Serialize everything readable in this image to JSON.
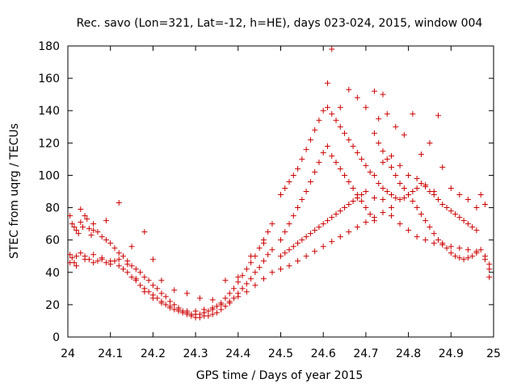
{
  "chart_data": {
    "type": "scatter",
    "title": "Rec. savo (Lon=321, Lat=-12, h=HE), days 023-024, 2015, window 004",
    "xlabel": "GPS time / Days of year 2015",
    "ylabel": "STEC from uqrg / TECUs",
    "xlim": [
      24,
      25
    ],
    "ylim": [
      0,
      180
    ],
    "xticks": [
      24,
      24.1,
      24.2,
      24.3,
      24.4,
      24.5,
      24.6,
      24.7,
      24.8,
      24.9,
      25
    ],
    "xtick_labels": [
      "24",
      "24.1",
      "24.2",
      "24.3",
      "24.4",
      "24.5",
      "24.6",
      "24.7",
      "24.8",
      "24.9",
      "25"
    ],
    "yticks": [
      0,
      20,
      40,
      60,
      80,
      100,
      120,
      140,
      160,
      180
    ],
    "ytick_labels": [
      "0",
      "20",
      "40",
      "60",
      "80",
      "100",
      "120",
      "140",
      "160",
      "180"
    ],
    "grid": false,
    "marker": "plus",
    "color": "#cc0000",
    "points": [
      [
        24.005,
        75
      ],
      [
        24.01,
        70
      ],
      [
        24.015,
        68
      ],
      [
        24.02,
        66
      ],
      [
        24.025,
        64
      ],
      [
        24.03,
        71
      ],
      [
        24.035,
        68
      ],
      [
        24.04,
        75
      ],
      [
        24.045,
        73
      ],
      [
        24.05,
        67
      ],
      [
        24.055,
        63
      ],
      [
        24.06,
        66
      ],
      [
        24.07,
        65
      ],
      [
        24.08,
        62
      ],
      [
        24.09,
        60
      ],
      [
        24.1,
        58
      ],
      [
        24.11,
        55
      ],
      [
        24.12,
        52
      ],
      [
        24.13,
        50
      ],
      [
        24.14,
        47
      ],
      [
        24.15,
        44
      ],
      [
        24.16,
        42
      ],
      [
        24.17,
        40
      ],
      [
        24.18,
        37
      ],
      [
        24.19,
        35
      ],
      [
        24.2,
        32
      ],
      [
        24.21,
        30
      ],
      [
        24.22,
        27
      ],
      [
        24.23,
        25
      ],
      [
        24.24,
        22
      ],
      [
        24.25,
        20
      ],
      [
        24.26,
        18
      ],
      [
        24.27,
        16
      ],
      [
        24.28,
        15
      ],
      [
        24.29,
        14
      ],
      [
        24.3,
        14
      ],
      [
        24.31,
        14
      ],
      [
        24.32,
        15
      ],
      [
        24.33,
        16
      ],
      [
        24.34,
        17
      ],
      [
        24.35,
        19
      ],
      [
        24.36,
        21
      ],
      [
        24.37,
        24
      ],
      [
        24.38,
        27
      ],
      [
        24.39,
        30
      ],
      [
        24.4,
        34
      ],
      [
        24.41,
        38
      ],
      [
        24.42,
        42
      ],
      [
        24.43,
        46
      ],
      [
        24.44,
        50
      ],
      [
        24.45,
        55
      ],
      [
        24.46,
        60
      ],
      [
        24.47,
        65
      ],
      [
        24.48,
        70
      ],
      [
        24.005,
        51
      ],
      [
        24.01,
        49
      ],
      [
        24.015,
        46
      ],
      [
        24.02,
        44
      ],
      [
        24.03,
        52
      ],
      [
        24.04,
        50
      ],
      [
        24.05,
        48
      ],
      [
        24.06,
        51
      ],
      [
        24.07,
        47
      ],
      [
        24.08,
        49
      ],
      [
        24.09,
        46
      ],
      [
        24.1,
        45
      ],
      [
        24.11,
        47
      ],
      [
        24.12,
        44
      ],
      [
        24.13,
        42
      ],
      [
        24.14,
        40
      ],
      [
        24.15,
        37
      ],
      [
        24.16,
        35
      ],
      [
        24.17,
        32
      ],
      [
        24.18,
        30
      ],
      [
        24.19,
        28
      ],
      [
        24.2,
        26
      ],
      [
        24.21,
        24
      ],
      [
        24.22,
        22
      ],
      [
        24.23,
        20
      ],
      [
        24.24,
        19
      ],
      [
        24.25,
        17
      ],
      [
        24.26,
        16
      ],
      [
        24.27,
        15
      ],
      [
        24.28,
        14
      ],
      [
        24.29,
        13
      ],
      [
        24.3,
        12
      ],
      [
        24.31,
        12
      ],
      [
        24.32,
        13
      ],
      [
        24.33,
        13
      ],
      [
        24.34,
        14
      ],
      [
        24.35,
        15
      ],
      [
        24.36,
        17
      ],
      [
        24.37,
        19
      ],
      [
        24.38,
        21
      ],
      [
        24.39,
        24
      ],
      [
        24.4,
        27
      ],
      [
        24.41,
        30
      ],
      [
        24.42,
        33
      ],
      [
        24.43,
        36
      ],
      [
        24.44,
        40
      ],
      [
        24.45,
        43
      ],
      [
        24.46,
        47
      ],
      [
        24.47,
        51
      ],
      [
        24.005,
        46
      ],
      [
        24.02,
        50
      ],
      [
        24.04,
        48
      ],
      [
        24.06,
        46
      ],
      [
        24.08,
        48
      ],
      [
        24.1,
        47
      ],
      [
        24.12,
        48
      ],
      [
        24.14,
        45
      ],
      [
        24.16,
        36
      ],
      [
        24.18,
        28
      ],
      [
        24.2,
        24
      ],
      [
        24.22,
        21
      ],
      [
        24.24,
        18
      ],
      [
        24.26,
        17
      ],
      [
        24.28,
        16
      ],
      [
        24.3,
        16
      ],
      [
        24.32,
        17
      ],
      [
        24.34,
        18
      ],
      [
        24.36,
        20
      ],
      [
        24.38,
        22
      ],
      [
        24.4,
        25
      ],
      [
        24.42,
        28
      ],
      [
        24.44,
        32
      ],
      [
        24.46,
        36
      ],
      [
        24.48,
        40
      ],
      [
        24.03,
        79
      ],
      [
        24.06,
        70
      ],
      [
        24.09,
        72
      ],
      [
        24.12,
        83
      ],
      [
        24.15,
        56
      ],
      [
        24.18,
        65
      ],
      [
        24.2,
        48
      ],
      [
        24.22,
        35
      ],
      [
        24.25,
        29
      ],
      [
        24.28,
        27
      ],
      [
        24.31,
        24
      ],
      [
        24.34,
        23
      ],
      [
        24.37,
        35
      ],
      [
        24.4,
        37
      ],
      [
        24.43,
        50
      ],
      [
        24.46,
        58
      ],
      [
        24.48,
        54
      ],
      [
        24.5,
        60
      ],
      [
        24.51,
        65
      ],
      [
        24.52,
        70
      ],
      [
        24.53,
        75
      ],
      [
        24.54,
        80
      ],
      [
        24.55,
        85
      ],
      [
        24.56,
        90
      ],
      [
        24.57,
        96
      ],
      [
        24.58,
        102
      ],
      [
        24.59,
        108
      ],
      [
        24.6,
        114
      ],
      [
        24.61,
        118
      ],
      [
        24.62,
        112
      ],
      [
        24.63,
        108
      ],
      [
        24.64,
        104
      ],
      [
        24.65,
        100
      ],
      [
        24.66,
        96
      ],
      [
        24.67,
        92
      ],
      [
        24.68,
        88
      ],
      [
        24.69,
        84
      ],
      [
        24.7,
        80
      ],
      [
        24.71,
        76
      ],
      [
        24.72,
        72
      ],
      [
        24.5,
        88
      ],
      [
        24.51,
        92
      ],
      [
        24.52,
        96
      ],
      [
        24.53,
        100
      ],
      [
        24.54,
        104
      ],
      [
        24.55,
        110
      ],
      [
        24.56,
        116
      ],
      [
        24.57,
        122
      ],
      [
        24.58,
        128
      ],
      [
        24.59,
        134
      ],
      [
        24.6,
        140
      ],
      [
        24.61,
        142
      ],
      [
        24.62,
        138
      ],
      [
        24.63,
        134
      ],
      [
        24.64,
        130
      ],
      [
        24.65,
        126
      ],
      [
        24.66,
        122
      ],
      [
        24.67,
        118
      ],
      [
        24.68,
        114
      ],
      [
        24.69,
        110
      ],
      [
        24.7,
        106
      ],
      [
        24.71,
        102
      ],
      [
        24.5,
        50
      ],
      [
        24.51,
        52
      ],
      [
        24.52,
        54
      ],
      [
        24.53,
        56
      ],
      [
        24.54,
        58
      ],
      [
        24.55,
        60
      ],
      [
        24.56,
        62
      ],
      [
        24.57,
        64
      ],
      [
        24.58,
        66
      ],
      [
        24.59,
        68
      ],
      [
        24.6,
        70
      ],
      [
        24.61,
        72
      ],
      [
        24.62,
        74
      ],
      [
        24.63,
        76
      ],
      [
        24.64,
        78
      ],
      [
        24.65,
        80
      ],
      [
        24.66,
        82
      ],
      [
        24.67,
        84
      ],
      [
        24.68,
        86
      ],
      [
        24.69,
        88
      ],
      [
        24.7,
        90
      ],
      [
        24.5,
        42
      ],
      [
        24.52,
        44
      ],
      [
        24.54,
        47
      ],
      [
        24.56,
        50
      ],
      [
        24.58,
        53
      ],
      [
        24.6,
        56
      ],
      [
        24.62,
        59
      ],
      [
        24.64,
        62
      ],
      [
        24.66,
        65
      ],
      [
        24.68,
        68
      ],
      [
        24.7,
        71
      ],
      [
        24.72,
        74
      ],
      [
        24.74,
        77
      ],
      [
        24.76,
        80
      ],
      [
        24.61,
        157
      ],
      [
        24.62,
        178
      ],
      [
        24.64,
        142
      ],
      [
        24.66,
        153
      ],
      [
        24.68,
        148
      ],
      [
        24.7,
        142
      ],
      [
        24.72,
        152
      ],
      [
        24.74,
        150
      ],
      [
        24.73,
        135
      ],
      [
        24.75,
        138
      ],
      [
        24.77,
        130
      ],
      [
        24.79,
        125
      ],
      [
        24.81,
        138
      ],
      [
        24.83,
        113
      ],
      [
        24.85,
        120
      ],
      [
        24.87,
        137
      ],
      [
        24.72,
        126
      ],
      [
        24.73,
        120
      ],
      [
        24.74,
        115
      ],
      [
        24.75,
        110
      ],
      [
        24.76,
        105
      ],
      [
        24.77,
        100
      ],
      [
        24.78,
        95
      ],
      [
        24.79,
        92
      ],
      [
        24.8,
        88
      ],
      [
        24.81,
        84
      ],
      [
        24.82,
        80
      ],
      [
        24.83,
        76
      ],
      [
        24.84,
        72
      ],
      [
        24.85,
        68
      ],
      [
        24.86,
        64
      ],
      [
        24.87,
        60
      ],
      [
        24.88,
        58
      ],
      [
        24.89,
        55
      ],
      [
        24.9,
        52
      ],
      [
        24.91,
        50
      ],
      [
        24.92,
        49
      ],
      [
        24.93,
        48
      ],
      [
        24.94,
        49
      ],
      [
        24.95,
        50
      ],
      [
        24.96,
        52
      ],
      [
        24.97,
        54
      ],
      [
        24.98,
        48
      ],
      [
        24.99,
        42
      ],
      [
        24.72,
        100
      ],
      [
        24.73,
        95
      ],
      [
        24.74,
        92
      ],
      [
        24.75,
        90
      ],
      [
        24.76,
        88
      ],
      [
        24.77,
        86
      ],
      [
        24.78,
        85
      ],
      [
        24.79,
        86
      ],
      [
        24.8,
        88
      ],
      [
        24.81,
        90
      ],
      [
        24.82,
        92
      ],
      [
        24.83,
        95
      ],
      [
        24.84,
        93
      ],
      [
        24.85,
        90
      ],
      [
        24.86,
        88
      ],
      [
        24.87,
        85
      ],
      [
        24.88,
        82
      ],
      [
        24.89,
        80
      ],
      [
        24.9,
        78
      ],
      [
        24.91,
        76
      ],
      [
        24.92,
        74
      ],
      [
        24.93,
        72
      ],
      [
        24.94,
        70
      ],
      [
        24.95,
        68
      ],
      [
        24.96,
        66
      ],
      [
        24.72,
        86
      ],
      [
        24.74,
        85
      ],
      [
        24.76,
        75
      ],
      [
        24.78,
        70
      ],
      [
        24.8,
        66
      ],
      [
        24.82,
        62
      ],
      [
        24.84,
        60
      ],
      [
        24.86,
        58
      ],
      [
        24.88,
        57
      ],
      [
        24.9,
        56
      ],
      [
        24.92,
        55
      ],
      [
        24.94,
        54
      ],
      [
        24.96,
        53
      ],
      [
        24.98,
        50
      ],
      [
        24.99,
        45
      ],
      [
        24.74,
        108
      ],
      [
        24.76,
        112
      ],
      [
        24.78,
        106
      ],
      [
        24.8,
        100
      ],
      [
        24.82,
        98
      ],
      [
        24.84,
        94
      ],
      [
        24.86,
        90
      ],
      [
        24.88,
        105
      ],
      [
        24.9,
        92
      ],
      [
        24.92,
        88
      ],
      [
        24.94,
        85
      ],
      [
        24.96,
        80
      ],
      [
        24.97,
        88
      ],
      [
        24.98,
        82
      ],
      [
        24.99,
        37
      ]
    ]
  }
}
